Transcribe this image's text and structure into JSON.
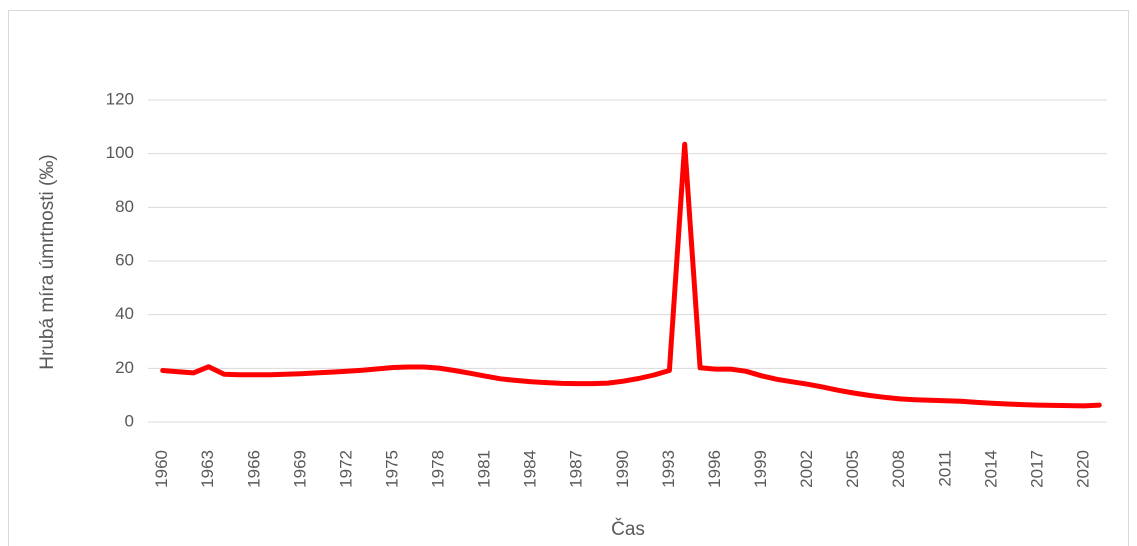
{
  "chart_data": {
    "type": "line",
    "x_label": "Čas",
    "y_label": "Hrubá míra úmrtnosti (‰)",
    "categories": [
      "1960",
      null,
      null,
      "1963",
      null,
      null,
      "1966",
      null,
      null,
      "1969",
      null,
      null,
      "1972",
      null,
      null,
      "1975",
      null,
      null,
      "1978",
      null,
      null,
      "1981",
      null,
      null,
      "1984",
      null,
      null,
      "1987",
      null,
      null,
      "1990",
      null,
      null,
      "1993",
      null,
      null,
      "1996",
      null,
      null,
      "1999",
      null,
      null,
      "2002",
      null,
      null,
      "2005",
      null,
      null,
      "2008",
      null,
      null,
      "2011",
      null,
      null,
      "2014",
      null,
      null,
      "2017",
      null,
      null,
      "2020",
      null
    ],
    "series": [
      {
        "name": "Hrubá míra úmrtnosti",
        "color": "#ff0000",
        "values": [
          19.2,
          18.7,
          18.3,
          20.6,
          17.8,
          17.6,
          17.6,
          17.6,
          17.8,
          18.0,
          18.3,
          18.6,
          18.9,
          19.3,
          19.8,
          20.3,
          20.5,
          20.5,
          20.1,
          19.2,
          18.2,
          17.1,
          16.1,
          15.5,
          15.0,
          14.7,
          14.4,
          14.3,
          14.3,
          14.5,
          15.2,
          16.2,
          17.5,
          19.2,
          103.5,
          20.2,
          19.7,
          19.7,
          18.9,
          17.2,
          15.9,
          15.0,
          14.1,
          13.0,
          11.8,
          10.8,
          9.9,
          9.2,
          8.6,
          8.3,
          8.1,
          7.9,
          7.7,
          7.3,
          7.0,
          6.7,
          6.5,
          6.3,
          6.2,
          6.1,
          6.0,
          6.3
        ]
      }
    ],
    "ylim": [
      0,
      120
    ],
    "yticks": [
      0,
      20,
      40,
      60,
      80,
      100,
      120
    ],
    "grid": true
  }
}
